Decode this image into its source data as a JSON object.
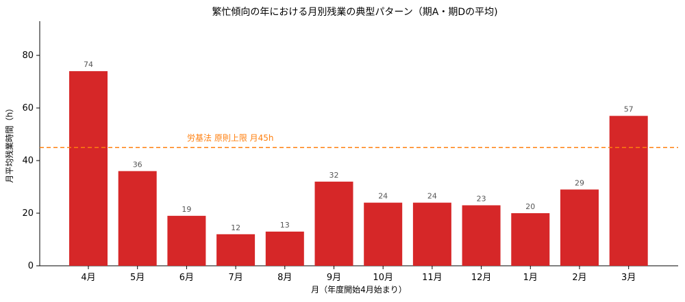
{
  "chart_data": {
    "type": "bar",
    "title": "繁忙傾向の年における月別残業の典型パターン（期A・期Dの平均)",
    "xlabel": "月（年度開始4月始まり）",
    "ylabel": "月平均残業時間（h）",
    "categories": [
      "4月",
      "5月",
      "6月",
      "7月",
      "8月",
      "9月",
      "10月",
      "11月",
      "12月",
      "1月",
      "2月",
      "3月"
    ],
    "values": [
      74,
      36,
      19,
      12,
      13,
      32,
      24,
      24,
      23,
      20,
      29,
      57
    ],
    "data_labels": [
      "74",
      "36",
      "19",
      "12",
      "13",
      "32",
      "24",
      "24",
      "23",
      "20",
      "29",
      "57"
    ],
    "ylim": [
      0,
      93
    ],
    "yticks": [
      0,
      20,
      40,
      60,
      80
    ],
    "ytick_labels": [
      "0",
      "20",
      "40",
      "60",
      "80"
    ],
    "bar_color": "#d62728",
    "reference_line": {
      "value": 45,
      "label": "労基法 原則上限 月45h",
      "color": "#ff7f0e",
      "style": "dashed"
    },
    "grid": false,
    "legend": "none"
  }
}
